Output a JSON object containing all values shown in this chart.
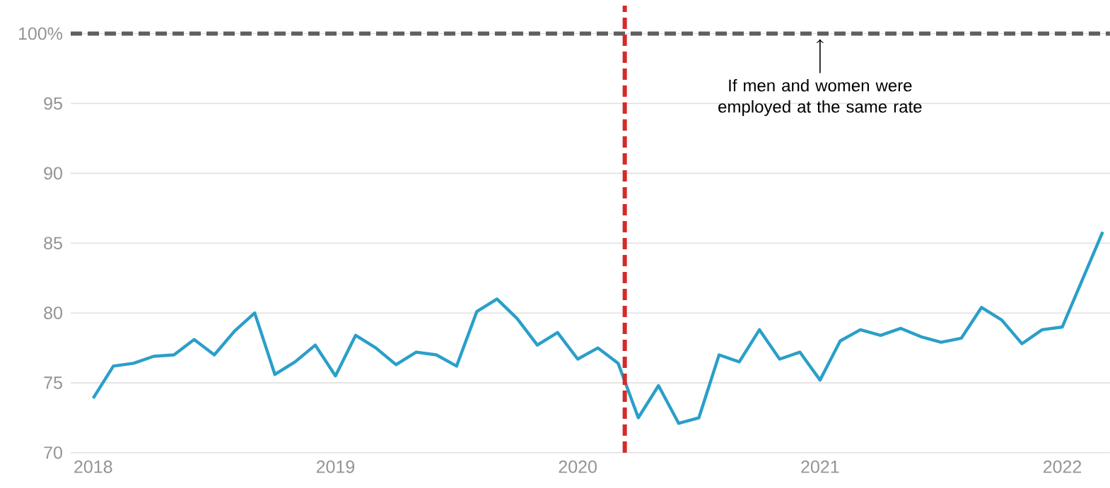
{
  "chart_data": {
    "type": "line",
    "x": [
      "2018-01",
      "2018-02",
      "2018-03",
      "2018-04",
      "2018-05",
      "2018-06",
      "2018-07",
      "2018-08",
      "2018-09",
      "2018-10",
      "2018-11",
      "2018-12",
      "2019-01",
      "2019-02",
      "2019-03",
      "2019-04",
      "2019-05",
      "2019-06",
      "2019-07",
      "2019-08",
      "2019-09",
      "2019-10",
      "2019-11",
      "2019-12",
      "2020-01",
      "2020-02",
      "2020-03",
      "2020-04",
      "2020-05",
      "2020-06",
      "2020-07",
      "2020-08",
      "2020-09",
      "2020-10",
      "2020-11",
      "2020-12",
      "2021-01",
      "2021-02",
      "2021-03",
      "2021-04",
      "2021-05",
      "2021-06",
      "2021-07",
      "2021-08",
      "2021-09",
      "2021-10",
      "2021-11",
      "2021-12",
      "2022-01",
      "2022-03"
    ],
    "series": [
      {
        "color": "#2a9fc9",
        "values": [
          73.9,
          76.2,
          76.4,
          76.9,
          77.0,
          78.1,
          77.0,
          78.7,
          80.0,
          75.6,
          76.5,
          77.7,
          75.5,
          78.4,
          77.5,
          76.3,
          77.2,
          77.0,
          76.2,
          80.1,
          81.0,
          79.6,
          77.7,
          78.6,
          76.7,
          77.5,
          76.4,
          72.5,
          74.8,
          72.1,
          72.5,
          77.0,
          76.5,
          78.8,
          76.7,
          77.2,
          75.2,
          78.0,
          78.8,
          78.4,
          78.9,
          78.3,
          77.9,
          78.2,
          80.4,
          79.5,
          77.8,
          78.8,
          79.0,
          85.8
        ]
      }
    ],
    "xlim": [
      "2017-11-28",
      "2022-03-12"
    ],
    "ylim": [
      70,
      102
    ],
    "xticks": [
      "2018",
      "2019",
      "2020",
      "2021",
      "2022"
    ],
    "yticks": [
      70,
      75,
      80,
      85,
      90,
      95,
      {
        "value": 100,
        "label": "100%"
      }
    ],
    "grid": "y",
    "ref_lines": [
      {
        "axis": "y",
        "value": 100,
        "color": "#5f5f5f",
        "line_style": "dashed"
      },
      {
        "axis": "x",
        "value": "2020-03-11",
        "color": "#d42a2a",
        "line_style": "dashed"
      }
    ],
    "annotations": [
      {
        "text": "If men and women were employed at the same rate",
        "x": "2021-01",
        "y": 100
      }
    ]
  }
}
